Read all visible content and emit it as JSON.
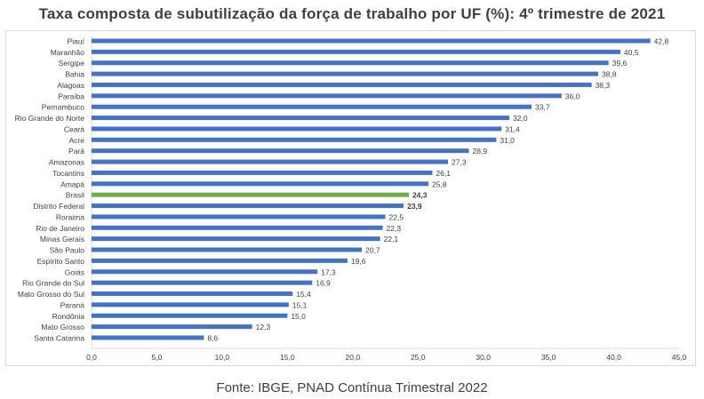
{
  "title": "Taxa composta de subutilização da força de trabalho por UF (%): 4º trimestre de 2021",
  "source": "Fonte: IBGE, PNAD Contínua Trimestral 2022",
  "colors": {
    "bar": "#4472c4",
    "highlight": "#70ad47",
    "text": "#404040"
  },
  "chart_data": {
    "type": "bar",
    "orientation": "horizontal",
    "title": "Taxa composta de subutilização da força de trabalho por UF (%): 4º trimestre de 2021",
    "categories": [
      "Piauí",
      "Maranhão",
      "Sergipe",
      "Bahia",
      "Alagoas",
      "Paraíba",
      "Pernambuco",
      "Rio Grande do Norte",
      "Ceará",
      "Acre",
      "Pará",
      "Amazonas",
      "Tocantins",
      "Amapá",
      "Brasil",
      "Distrito Federal",
      "Roraima",
      "Rio de Janeiro",
      "Minas Gerais",
      "São Paulo",
      "Espírito Santo",
      "Goiás",
      "Rio Grande do Sul",
      "Mato Grosso do Sul",
      "Paraná",
      "Rondônia",
      "Mato Grosso",
      "Santa Catarina"
    ],
    "values": [
      42.8,
      40.5,
      39.6,
      38.8,
      38.3,
      36.0,
      33.7,
      32.0,
      31.4,
      31.0,
      28.9,
      27.3,
      26.1,
      25.8,
      24.3,
      23.9,
      22.5,
      22.3,
      22.1,
      20.7,
      19.6,
      17.3,
      16.9,
      15.4,
      15.1,
      15.0,
      12.3,
      8.6
    ],
    "value_labels": [
      "42,8",
      "40,5",
      "39,6",
      "38,8",
      "38,3",
      "36,0",
      "33,7",
      "32,0",
      "31,4",
      "31,0",
      "28,9",
      "27,3",
      "26,1",
      "25,8",
      "24,3",
      "23,9",
      "22,5",
      "22,3",
      "22,1",
      "20,7",
      "19,6",
      "17,3",
      "16,9",
      "15,4",
      "15,1",
      "15,0",
      "12,3",
      "8,6"
    ],
    "highlight": [
      "Brasil",
      "Distrito Federal"
    ],
    "xlim": [
      0,
      45
    ],
    "x_ticks": [
      0,
      5,
      10,
      15,
      20,
      25,
      30,
      35,
      40,
      45
    ],
    "x_tick_labels": [
      "0,0",
      "5,0",
      "10,0",
      "15,0",
      "20,0",
      "25,0",
      "30,0",
      "35,0",
      "40,0",
      "45,0"
    ],
    "grid": false,
    "legend": "none"
  }
}
